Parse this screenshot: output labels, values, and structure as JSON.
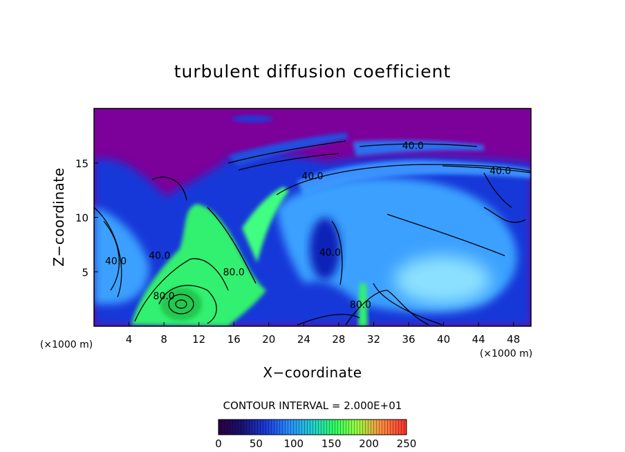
{
  "chart_data": {
    "type": "heatmap",
    "title": "turbulent diffusion coefficient",
    "xlabel": "X−coordinate",
    "ylabel": "Z−coordinate",
    "x_unit": "(×1000 m)",
    "x_unit_right": "(×1000 m)",
    "xlim": [
      0,
      50
    ],
    "ylim": [
      0,
      20
    ],
    "x_ticks": [
      4,
      8,
      12,
      16,
      20,
      24,
      28,
      32,
      36,
      40,
      44,
      48
    ],
    "y_ticks": [
      5,
      10,
      15
    ],
    "contour_interval_text": "CONTOUR INTERVAL = 2.000E+01",
    "contour_interval": 20,
    "colorbar": {
      "ticks": [
        0,
        50,
        100,
        150,
        200,
        250
      ],
      "range": [
        0,
        250
      ]
    },
    "contour_labels": [
      {
        "text": "40.0",
        "x": 36.5,
        "z": 16.6
      },
      {
        "text": "40.0",
        "x": 46.5,
        "z": 14.3
      },
      {
        "text": "40.0",
        "x": 25.0,
        "z": 13.8
      },
      {
        "text": "40.0",
        "x": 2.5,
        "z": 6.0
      },
      {
        "text": "40.0",
        "x": 7.5,
        "z": 6.5
      },
      {
        "text": "40.0",
        "x": 27.0,
        "z": 6.8
      },
      {
        "text": "80.0",
        "x": 16.0,
        "z": 5.0
      },
      {
        "text": "80.0",
        "x": 8.0,
        "z": 2.8
      },
      {
        "text": "80.0",
        "x": 30.5,
        "z": 2.0
      }
    ]
  },
  "colors": {
    "background_high": "#7c009a",
    "low": "#1530d8",
    "mid": "#3aa0ff",
    "high": "#30ff70"
  }
}
